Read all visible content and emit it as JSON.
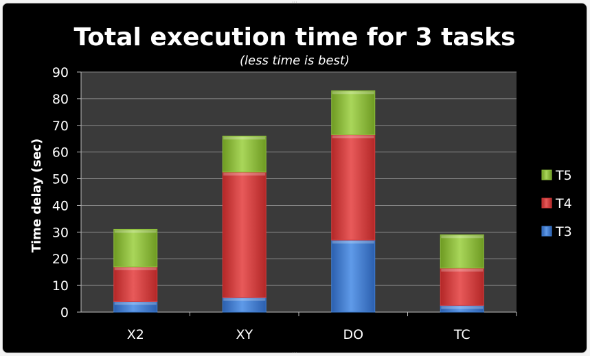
{
  "chart_data": {
    "type": "bar",
    "stacked": true,
    "title": "Total execution time for 3 tasks",
    "subtitle": "(less time is best)",
    "xlabel": "",
    "ylabel": "Time delay (sec)",
    "ylim": [
      0,
      90
    ],
    "yticks": [
      0,
      10,
      20,
      30,
      40,
      50,
      60,
      70,
      80,
      90
    ],
    "grid": true,
    "legend_position": "right",
    "categories": [
      "X2",
      "XY",
      "DO",
      "TC"
    ],
    "series": [
      {
        "name": "T3",
        "values": [
          4,
          5.5,
          27,
          2.5
        ],
        "color": "#3f7fd6"
      },
      {
        "name": "T4",
        "values": [
          13,
          47,
          39.5,
          14
        ],
        "color": "#d83c3c"
      },
      {
        "name": "T5",
        "values": [
          14,
          13.5,
          16.5,
          12.5
        ],
        "color": "#8fc23c"
      }
    ],
    "colors": {
      "background": "#000000",
      "plot_area": "#3a3a3a",
      "gridline": "#8a8a8a",
      "text": "#ffffff"
    }
  }
}
